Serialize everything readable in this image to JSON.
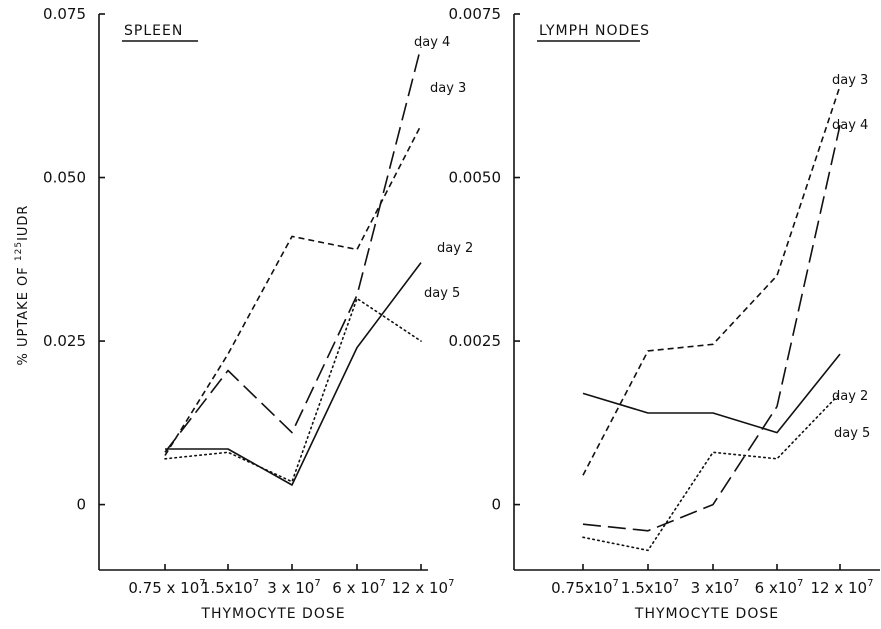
{
  "ylabel_prefix": "% UPTAKE OF ",
  "ylabel_isotope_mass": "125",
  "ylabel_suffix": "IUDR",
  "chart_data": [
    {
      "type": "line",
      "title": "SPLEEN",
      "xlabel": "THYMOCYTE DOSE",
      "categories": [
        "0.75x10^7",
        "1.5x10^7",
        "3x10^7",
        "6x10^7",
        "12x10^7"
      ],
      "category_labels": [
        {
          "base": "0.75 x 10",
          "exp": "7"
        },
        {
          "base": "1.5x10",
          "exp": "7"
        },
        {
          "base": "3 x 10",
          "exp": "7"
        },
        {
          "base": "6 x 10",
          "exp": "7"
        },
        {
          "base": "12 x 10",
          "exp": "7"
        }
      ],
      "ylim": [
        -0.01,
        0.075
      ],
      "yticks": [
        0,
        0.025,
        0.05,
        0.075
      ],
      "ytick_labels": [
        "0",
        "0.025",
        "0.050",
        "0.075"
      ],
      "grid": false,
      "series": [
        {
          "name": "day 2",
          "style": "solid",
          "values": [
            0.0085,
            0.0085,
            0.003,
            0.024,
            0.037
          ]
        },
        {
          "name": "day 3",
          "style": "short-dash",
          "values": [
            0.0075,
            0.023,
            0.041,
            0.039,
            0.058
          ]
        },
        {
          "name": "day 4",
          "style": "long-dash",
          "values": [
            0.008,
            0.0205,
            0.011,
            0.032,
            0.07
          ]
        },
        {
          "name": "day 5",
          "style": "dotted",
          "values": [
            0.007,
            0.008,
            0.0035,
            0.0315,
            0.025
          ]
        }
      ]
    },
    {
      "type": "line",
      "title": "LYMPH NODES",
      "xlabel": "THYMOCYTE DOSE",
      "categories": [
        "0.75x10^7",
        "1.5x10^7",
        "3x10^7",
        "6x10^7",
        "12x10^7"
      ],
      "category_labels": [
        {
          "base": "0.75x10",
          "exp": "7"
        },
        {
          "base": "1.5x10",
          "exp": "7"
        },
        {
          "base": "3 x10",
          "exp": "7"
        },
        {
          "base": "6 x10",
          "exp": "7"
        },
        {
          "base": "12 x 10",
          "exp": "7"
        }
      ],
      "ylim": [
        -0.001,
        0.0075
      ],
      "yticks": [
        0,
        0.0025,
        0.005,
        0.0075
      ],
      "ytick_labels": [
        "0",
        "0.0025",
        "0.0050",
        "0.0075"
      ],
      "grid": false,
      "series": [
        {
          "name": "day 2",
          "style": "solid",
          "values": [
            0.0017,
            0.0014,
            0.0014,
            0.0011,
            0.0023
          ]
        },
        {
          "name": "day 3",
          "style": "short-dash",
          "values": [
            0.00045,
            0.00235,
            0.00245,
            0.0035,
            0.0064
          ]
        },
        {
          "name": "day 4",
          "style": "long-dash",
          "values": [
            -0.0003,
            -0.0004,
            0.0,
            0.0015,
            0.0058
          ]
        },
        {
          "name": "day 5",
          "style": "dotted",
          "values": [
            -0.0005,
            -0.0007,
            0.0008,
            0.0007,
            0.0017
          ]
        }
      ]
    }
  ]
}
